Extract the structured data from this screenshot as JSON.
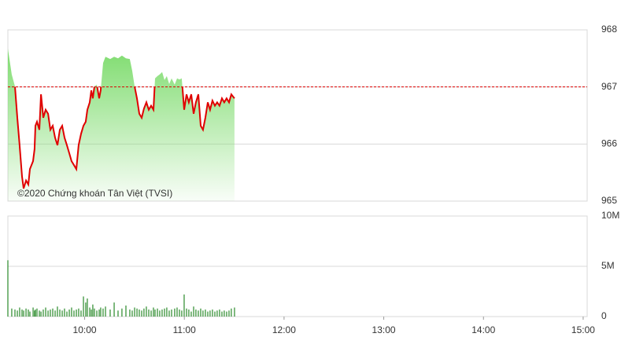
{
  "chart_data": [
    {
      "type": "line",
      "annotation": "©2020 Chứng khoán Tân Việt (TVSI)",
      "x": [
        9.23,
        9.269,
        9.301,
        9.325,
        9.348,
        9.372,
        9.388,
        9.412,
        9.435,
        9.451,
        9.483,
        9.498,
        9.506,
        9.522,
        9.546,
        9.562,
        9.585,
        9.609,
        9.633,
        9.656,
        9.68,
        9.704,
        9.727,
        9.751,
        9.775,
        9.798,
        9.822,
        9.846,
        9.869,
        9.893,
        9.917,
        9.94,
        9.964,
        9.988,
        10.011,
        10.027,
        10.051,
        10.067,
        10.082,
        10.098,
        10.122,
        10.146,
        10.161,
        10.185,
        10.209,
        10.256,
        10.296,
        10.335,
        10.374,
        10.414,
        10.453,
        10.477,
        10.501,
        10.525,
        10.548,
        10.572,
        10.595,
        10.619,
        10.643,
        10.667,
        10.69,
        10.706,
        10.73,
        10.753,
        10.777,
        10.801,
        10.824,
        10.848,
        10.872,
        10.903,
        10.927,
        10.951,
        10.974,
        10.998,
        11.022,
        11.045,
        11.069,
        11.093,
        11.116,
        11.14,
        11.164,
        11.187,
        11.211,
        11.235,
        11.258,
        11.282,
        11.306,
        11.329,
        11.353,
        11.377,
        11.4,
        11.424,
        11.448,
        11.471,
        11.503
      ],
      "values": [
        967.67,
        967.22,
        967.01,
        966.46,
        965.98,
        965.43,
        965.22,
        965.36,
        965.29,
        965.56,
        965.7,
        965.91,
        966.32,
        966.39,
        966.25,
        966.87,
        966.46,
        966.6,
        966.53,
        966.25,
        966.32,
        966.11,
        965.98,
        966.25,
        966.32,
        966.11,
        965.98,
        965.84,
        965.7,
        965.63,
        965.56,
        965.98,
        966.18,
        966.32,
        966.39,
        966.6,
        966.73,
        966.94,
        966.8,
        967.01,
        967.04,
        966.8,
        966.94,
        967.42,
        967.53,
        967.49,
        967.53,
        967.5,
        967.55,
        967.5,
        967.49,
        967.28,
        967.01,
        966.8,
        966.53,
        966.46,
        966.62,
        966.73,
        966.6,
        966.67,
        966.6,
        967.15,
        967.19,
        967.22,
        967.26,
        967.12,
        967.19,
        967.05,
        967.15,
        967.04,
        967.15,
        967.13,
        967.15,
        966.6,
        966.87,
        966.73,
        966.87,
        966.53,
        966.73,
        966.87,
        966.32,
        966.25,
        966.46,
        966.73,
        966.6,
        966.76,
        966.67,
        966.73,
        966.67,
        966.8,
        966.73,
        966.8,
        966.73,
        966.87,
        966.8
      ],
      "color": "#e00000",
      "fill_color": "#7fdc6f",
      "reference": 967,
      "reference_color": "#e00000",
      "xlim": [
        9.23,
        15.04
      ],
      "ylim": [
        965,
        968
      ],
      "yticks": [
        965,
        966,
        967,
        968
      ],
      "grid": true
    },
    {
      "type": "bar",
      "x": [
        9.23,
        9.269,
        9.301,
        9.325,
        9.348,
        9.372,
        9.388,
        9.412,
        9.435,
        9.451,
        9.483,
        9.498,
        9.506,
        9.522,
        9.546,
        9.562,
        9.585,
        9.609,
        9.633,
        9.656,
        9.68,
        9.704,
        9.727,
        9.751,
        9.775,
        9.798,
        9.822,
        9.846,
        9.869,
        9.893,
        9.917,
        9.94,
        9.964,
        9.988,
        10.011,
        10.027,
        10.051,
        10.067,
        10.082,
        10.098,
        10.122,
        10.146,
        10.161,
        10.185,
        10.209,
        10.256,
        10.296,
        10.335,
        10.374,
        10.414,
        10.453,
        10.477,
        10.501,
        10.525,
        10.548,
        10.572,
        10.595,
        10.619,
        10.643,
        10.667,
        10.69,
        10.706,
        10.73,
        10.753,
        10.777,
        10.801,
        10.824,
        10.848,
        10.872,
        10.903,
        10.927,
        10.951,
        10.974,
        10.998,
        11.022,
        11.045,
        11.069,
        11.093,
        11.116,
        11.14,
        11.164,
        11.187,
        11.211,
        11.235,
        11.258,
        11.282,
        11.306,
        11.329,
        11.353,
        11.377,
        11.4,
        11.424,
        11.448,
        11.471,
        11.503
      ],
      "values": [
        5600000,
        800000,
        700000,
        600000,
        900000,
        700000,
        600000,
        800000,
        700000,
        500000,
        900000,
        600000,
        700000,
        800000,
        600000,
        500000,
        700000,
        900000,
        600000,
        700000,
        800000,
        600000,
        1000000,
        700000,
        600000,
        800000,
        500000,
        700000,
        900000,
        600000,
        700000,
        800000,
        600000,
        2000000,
        1400000,
        1800000,
        900000,
        700000,
        1200000,
        800000,
        600000,
        700000,
        900000,
        800000,
        1000000,
        700000,
        1400000,
        600000,
        800000,
        1100000,
        700000,
        600000,
        900000,
        800000,
        700000,
        600000,
        800000,
        1000000,
        700000,
        600000,
        900000,
        700000,
        800000,
        600000,
        700000,
        800000,
        900000,
        600000,
        700000,
        800000,
        900000,
        700000,
        600000,
        2200000,
        800000,
        700000,
        500000,
        1000000,
        700000,
        600000,
        800000,
        600000,
        700000,
        500000,
        600000,
        700000,
        500000,
        600000,
        700000,
        500000,
        600000,
        500000,
        600000,
        800000,
        900000
      ],
      "color": "#2a8a2a",
      "xlim": [
        9.23,
        15.04
      ],
      "xticks": [
        {
          "value": 10,
          "label": "10:00"
        },
        {
          "value": 11,
          "label": "11:00"
        },
        {
          "value": 12,
          "label": "12:00"
        },
        {
          "value": 13,
          "label": "13:00"
        },
        {
          "value": 14,
          "label": "14:00"
        },
        {
          "value": 15,
          "label": "15:00"
        }
      ],
      "ylim": [
        0,
        10000000
      ],
      "yticks": [
        {
          "value": 0,
          "label": "0"
        },
        {
          "value": 5000000,
          "label": "5M"
        },
        {
          "value": 10000000,
          "label": "10M"
        }
      ],
      "grid": true
    }
  ]
}
